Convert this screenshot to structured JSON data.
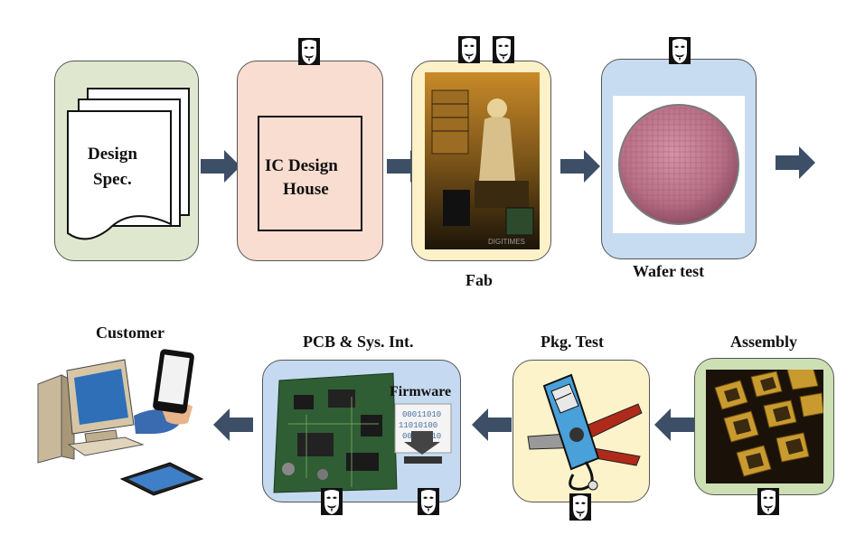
{
  "stages": {
    "design_spec": {
      "line1": "Design",
      "line2": "Spec."
    },
    "ic_design_house": {
      "line1": "IC Design",
      "line2": "House"
    },
    "fab": {
      "label": "Fab",
      "photo_watermark": "DIGITIMES"
    },
    "wafer_test": {
      "label": "Wafer test"
    },
    "assembly": {
      "label": "Assembly"
    },
    "pkg_test": {
      "label": "Pkg. Test"
    },
    "pcb_sys_int": {
      "label": "PCB & Sys. Int.",
      "firmware": "Firmware",
      "firmware_bits": [
        "00011010",
        "11010100",
        "00111110"
      ]
    },
    "customer": {
      "label": "Customer"
    }
  },
  "colors": {
    "design_spec_bg": "#dfe8cf",
    "ic_design_bg": "#f9ddd0",
    "fab_bg": "#fdf1c8",
    "wafer_bg": "#c7dcf0",
    "assembly_bg": "#cde0b4",
    "pkg_bg": "#fdf3cb",
    "pcb_bg": "#c5daf0",
    "arrow": "#3c4f66"
  },
  "icons": [
    "attacker-mask-icon",
    "arrow-right-icon",
    "arrow-left-icon"
  ]
}
